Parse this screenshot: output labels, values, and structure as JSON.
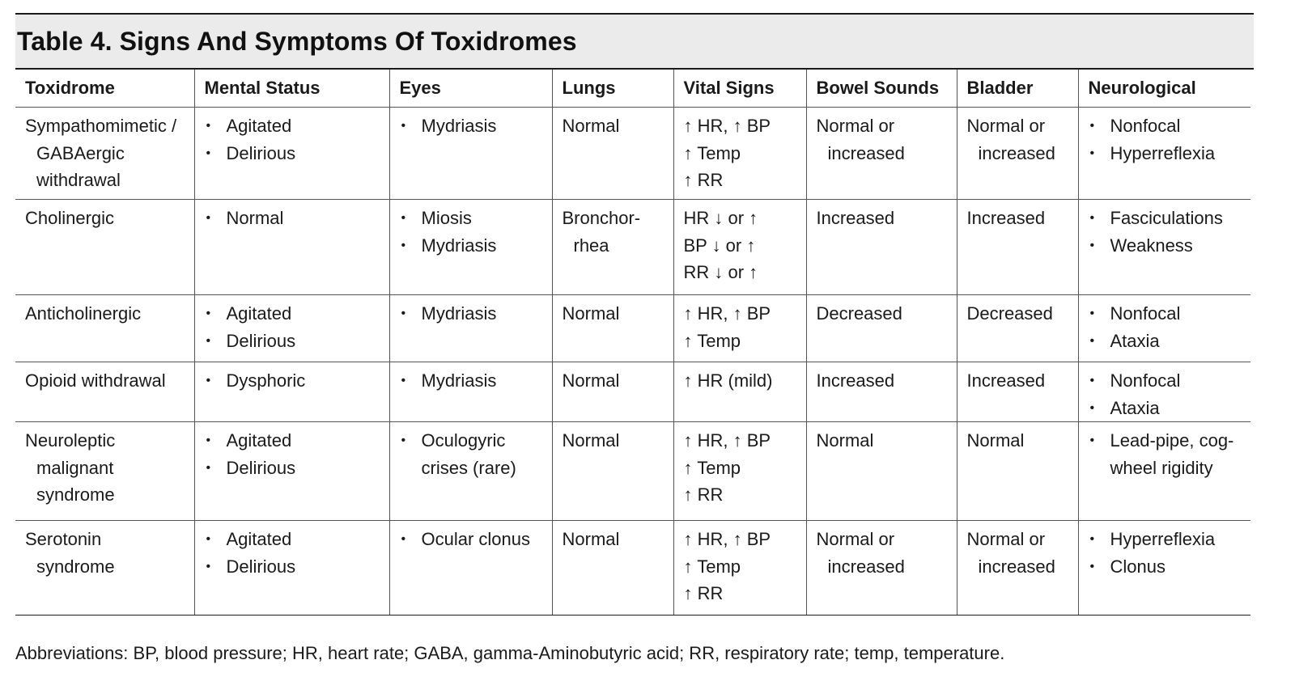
{
  "title": "Table 4. Signs And Symptoms Of Toxidromes",
  "headers": [
    "Toxidrome",
    "Mental Status",
    "Eyes",
    "Lungs",
    "Vital Signs",
    "Bowel Sounds",
    "Bladder",
    "Neurological"
  ],
  "rows": [
    {
      "toxidrome": [
        "Sympathomimetic /",
        "GABAergic",
        "withdrawal"
      ],
      "mental": [
        "Agitated",
        "Delirious"
      ],
      "eyes": [
        "Mydriasis"
      ],
      "lungs": [
        "Normal"
      ],
      "vitals": [
        "↑ HR, ↑ BP",
        "↑ Temp",
        "↑ RR"
      ],
      "bowel": [
        "Normal or",
        "increased"
      ],
      "bladder": [
        "Normal or",
        "increased"
      ],
      "neuro": [
        "Nonfocal",
        "Hyperreflexia"
      ]
    },
    {
      "toxidrome": [
        "Cholinergic"
      ],
      "mental": [
        "Normal"
      ],
      "eyes": [
        "Miosis",
        "Mydriasis"
      ],
      "lungs": [
        "Bronchor-",
        "rhea"
      ],
      "vitals": [
        "HR ↓ or ↑",
        "BP ↓ or ↑",
        "RR ↓ or ↑"
      ],
      "bowel": [
        "Increased"
      ],
      "bladder": [
        "Increased"
      ],
      "neuro": [
        "Fasciculations",
        "Weakness"
      ]
    },
    {
      "toxidrome": [
        "Anticholinergic"
      ],
      "mental": [
        "Agitated",
        "Delirious"
      ],
      "eyes": [
        "Mydriasis"
      ],
      "lungs": [
        "Normal"
      ],
      "vitals": [
        "↑ HR, ↑ BP",
        "↑ Temp"
      ],
      "bowel": [
        "Decreased"
      ],
      "bladder": [
        "Decreased"
      ],
      "neuro": [
        "Nonfocal",
        "Ataxia"
      ]
    },
    {
      "toxidrome": [
        "Opioid withdrawal"
      ],
      "mental": [
        "Dysphoric"
      ],
      "eyes": [
        "Mydriasis"
      ],
      "lungs": [
        "Normal"
      ],
      "vitals": [
        "↑ HR (mild)"
      ],
      "bowel": [
        "Increased"
      ],
      "bladder": [
        "Increased"
      ],
      "neuro": [
        "Nonfocal",
        "Ataxia"
      ]
    },
    {
      "toxidrome": [
        "Neuroleptic",
        "malignant",
        "syndrome"
      ],
      "mental": [
        "Agitated",
        "Delirious"
      ],
      "eyes": [
        "Oculogyric crises (rare)"
      ],
      "lungs": [
        "Normal"
      ],
      "vitals": [
        "↑ HR, ↑ BP",
        "↑ Temp",
        "↑ RR"
      ],
      "bowel": [
        "Normal"
      ],
      "bladder": [
        "Normal"
      ],
      "neuro": [
        "Lead-pipe, cog-wheel rigidity"
      ]
    },
    {
      "toxidrome": [
        "Serotonin",
        "syndrome"
      ],
      "mental": [
        "Agitated",
        "Delirious"
      ],
      "eyes": [
        "Ocular clonus"
      ],
      "lungs": [
        "Normal"
      ],
      "vitals": [
        "↑ HR, ↑ BP",
        "↑ Temp",
        "↑ RR"
      ],
      "bowel": [
        "Normal or",
        "increased"
      ],
      "bladder": [
        "Normal or",
        "increased"
      ],
      "neuro": [
        "Hyperreflexia",
        "Clonus"
      ]
    }
  ],
  "footnote": "Abbreviations: BP, blood pressure; HR, heart rate; GABA, gamma-Aminobutyric acid; RR, respiratory rate; temp, temperature."
}
